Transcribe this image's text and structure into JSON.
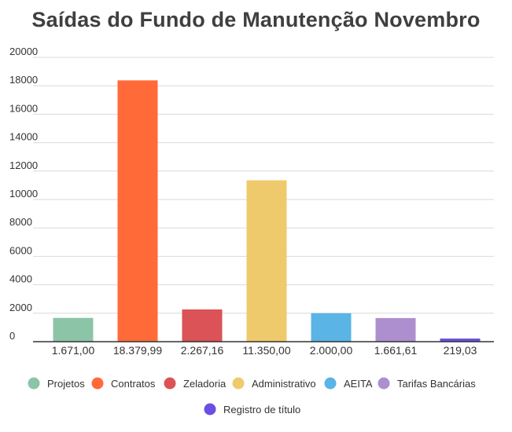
{
  "chart_data": {
    "type": "bar",
    "title": "Saídas do Fundo de Manutenção Novembro",
    "xlabel": "",
    "ylabel": "",
    "ylim": [
      0,
      20000
    ],
    "yticks": [
      "0",
      "2000",
      "4000",
      "6000",
      "8000",
      "10000",
      "12000",
      "14000",
      "16000",
      "18000",
      "20000"
    ],
    "grid": true,
    "legend_position": "bottom",
    "categories": [
      "Projetos",
      "Contratos",
      "Zeladoria",
      "Administrativo",
      "AEITA",
      "Tarifas Bancárias",
      "Registro de título"
    ],
    "values": [
      1671.0,
      18379.99,
      2267.16,
      11350.0,
      2000.0,
      1661.61,
      219.03
    ],
    "value_labels": [
      "1.671,00",
      "18.379,99",
      "2.267,16",
      "11.350,00",
      "2.000,00",
      "1.661,61",
      "219,03"
    ],
    "colors": [
      "#8cc4a8",
      "#ff6a38",
      "#db5257",
      "#efca6c",
      "#5ab4e5",
      "#ad8fcf",
      "#6a4fe0"
    ]
  }
}
